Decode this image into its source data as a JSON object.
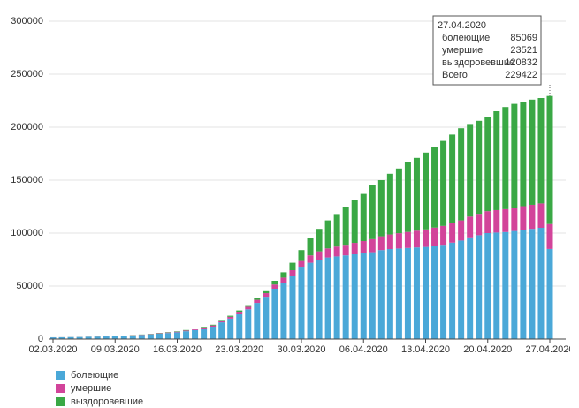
{
  "chart_data": {
    "type": "stacked_bar",
    "categories": [
      "02.03.2020",
      null,
      null,
      null,
      null,
      null,
      null,
      "09.03.2020",
      null,
      null,
      null,
      null,
      null,
      null,
      "16.03.2020",
      null,
      null,
      null,
      null,
      null,
      null,
      "23.03.2020",
      null,
      null,
      null,
      null,
      null,
      null,
      "30.03.2020",
      null,
      null,
      null,
      null,
      null,
      null,
      "06.04.2020",
      null,
      null,
      null,
      null,
      null,
      null,
      "13.04.2020",
      null,
      null,
      null,
      null,
      null,
      null,
      "20.04.2020",
      null,
      null,
      null,
      null,
      null,
      null,
      "27.04.2020"
    ],
    "series": [
      {
        "name": "болеющие",
        "color": "#4aa8d8",
        "values": [
          1620,
          1700,
          1880,
          1960,
          2140,
          2310,
          2470,
          2630,
          2960,
          3390,
          3800,
          4400,
          5090,
          5670,
          6340,
          7370,
          8480,
          9950,
          11650,
          15750,
          19300,
          23800,
          28100,
          34100,
          39900,
          47500,
          53300,
          59600,
          68300,
          72000,
          75000,
          77000,
          78000,
          79000,
          80000,
          81000,
          82000,
          84000,
          85000,
          85500,
          86000,
          86500,
          87000,
          88000,
          89000,
          91000,
          93000,
          96000,
          98000,
          100000,
          100500,
          101000,
          102000,
          103000,
          104000,
          105000,
          85069
        ]
      },
      {
        "name": "умершие",
        "color": "#d2449a",
        "values": [
          50,
          60,
          70,
          80,
          90,
          110,
          130,
          150,
          190,
          230,
          280,
          340,
          410,
          480,
          560,
          680,
          800,
          950,
          1150,
          1400,
          1700,
          2000,
          2400,
          2900,
          3400,
          4000,
          4700,
          5400,
          6200,
          7000,
          7800,
          8600,
          9300,
          10000,
          10800,
          11500,
          12300,
          13000,
          13700,
          14400,
          15100,
          15800,
          16500,
          17200,
          17800,
          18400,
          19000,
          19600,
          20200,
          20700,
          21200,
          21600,
          22000,
          22400,
          22700,
          23000,
          23521
        ]
      },
      {
        "name": "выздоровевшие",
        "color": "#3aa845",
        "values": [
          30,
          40,
          50,
          60,
          70,
          80,
          100,
          120,
          150,
          180,
          220,
          260,
          300,
          350,
          400,
          450,
          520,
          600,
          700,
          850,
          1000,
          1200,
          1500,
          2000,
          2700,
          3500,
          5000,
          7000,
          9500,
          16000,
          21200,
          26400,
          30700,
          36000,
          40200,
          44500,
          50700,
          53000,
          57300,
          61100,
          65900,
          68700,
          72500,
          75800,
          80200,
          83600,
          87000,
          87400,
          87800,
          89300,
          93300,
          96400,
          98000,
          98600,
          99300,
          99500,
          120832
        ]
      }
    ],
    "ylim": [
      0,
      300000
    ],
    "yticks": [
      0,
      50000,
      100000,
      150000,
      200000,
      250000,
      300000
    ],
    "grid": true,
    "tooltip": {
      "date": "27.04.2020",
      "rows": [
        {
          "label": "болеющие",
          "value": 85069
        },
        {
          "label": "умершие",
          "value": 23521
        },
        {
          "label": "выздоровевшие",
          "value": 120832
        },
        {
          "label": "Всего",
          "value": 229422
        }
      ]
    }
  }
}
